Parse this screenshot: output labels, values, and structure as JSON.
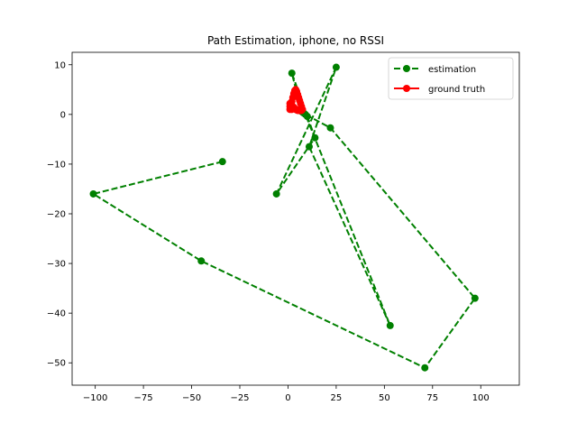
{
  "chart_data": {
    "type": "line",
    "title": "Path Estimation, iphone, no RSSI",
    "xlabel": "",
    "ylabel": "",
    "xlim": [
      -112,
      120
    ],
    "ylim": [
      -54.5,
      12.5
    ],
    "xticks": [
      -100,
      -75,
      -50,
      -25,
      0,
      25,
      50,
      75,
      100
    ],
    "yticks": [
      10,
      0,
      -10,
      -20,
      -30,
      -40,
      -50
    ],
    "xtick_labels": [
      "−100",
      "−75",
      "−50",
      "−25",
      "0",
      "25",
      "50",
      "75",
      "100"
    ],
    "ytick_labels": [
      "10",
      "0",
      "−10",
      "−20",
      "−30",
      "−40",
      "−50"
    ],
    "grid": false,
    "legend_position": "top-right",
    "series": [
      {
        "name": "estimation",
        "color": "#008000",
        "linestyle": "dashed",
        "marker": "circle",
        "x": [
          -34,
          -101,
          -45,
          71,
          97,
          22,
          9,
          53,
          11,
          25,
          -6,
          14,
          2,
          7,
          10,
          8
        ],
        "y": [
          -9.5,
          -16,
          -29.5,
          -51,
          -37,
          -2.7,
          0,
          -42.5,
          -6.5,
          9.5,
          -16,
          -4.7,
          8.3,
          0.6,
          -0.4,
          0.3
        ]
      },
      {
        "name": "ground truth",
        "color": "#ff0000",
        "linestyle": "solid",
        "marker": "circle",
        "x": [
          1,
          1.5,
          2,
          2.5,
          3,
          3.5,
          4,
          4.5,
          5,
          5.5,
          6,
          6.5,
          7,
          7.5,
          7,
          6.5,
          6,
          5.5,
          5,
          4.5,
          4,
          3.5,
          3,
          2.5,
          2,
          1.5,
          1,
          1,
          1.5,
          2
        ],
        "y": [
          1,
          1.8,
          2.6,
          3.4,
          4.2,
          4.8,
          5,
          4.6,
          4,
          3.4,
          2.8,
          2.2,
          1.6,
          1,
          0.8,
          0.8,
          0.8,
          0.8,
          0.8,
          0.9,
          1,
          1.2,
          1.4,
          1.6,
          1.8,
          2,
          2.2,
          1.6,
          1.2,
          1
        ]
      }
    ]
  }
}
